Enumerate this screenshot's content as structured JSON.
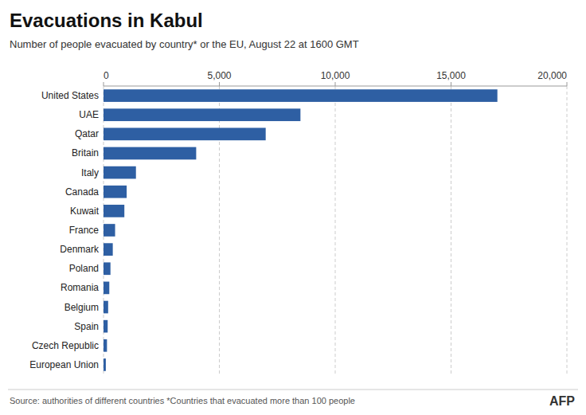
{
  "chart_data": {
    "type": "bar",
    "orientation": "horizontal",
    "title": "Evacuations in Kabul",
    "subtitle": "Number of people evacuated by country* or the EU, August 22 at 1600 GMT",
    "annotations": [
      "Source: authorities of different countries   *Countries that evacuated more than 100 people",
      "AFP"
    ],
    "categories": [
      "United States",
      "UAE",
      "Qatar",
      "Britain",
      "Italy",
      "Canada",
      "Kuwait",
      "France",
      "Denmark",
      "Poland",
      "Romania",
      "Belgium",
      "Spain",
      "Czech Republic",
      "European Union"
    ],
    "values": [
      17000,
      8500,
      7000,
      4000,
      1400,
      1000,
      900,
      500,
      400,
      300,
      250,
      200,
      180,
      150,
      100
    ],
    "color": "#2e5fa3",
    "xlim": [
      0,
      20000
    ],
    "xticks": [
      0,
      {
        "value": 5000,
        "label": "5,000"
      },
      {
        "value": 10000,
        "label": "10,000"
      },
      {
        "value": 15000,
        "label": "15,000"
      },
      {
        "value": 20000,
        "label": "20,000"
      }
    ],
    "grid": true
  }
}
